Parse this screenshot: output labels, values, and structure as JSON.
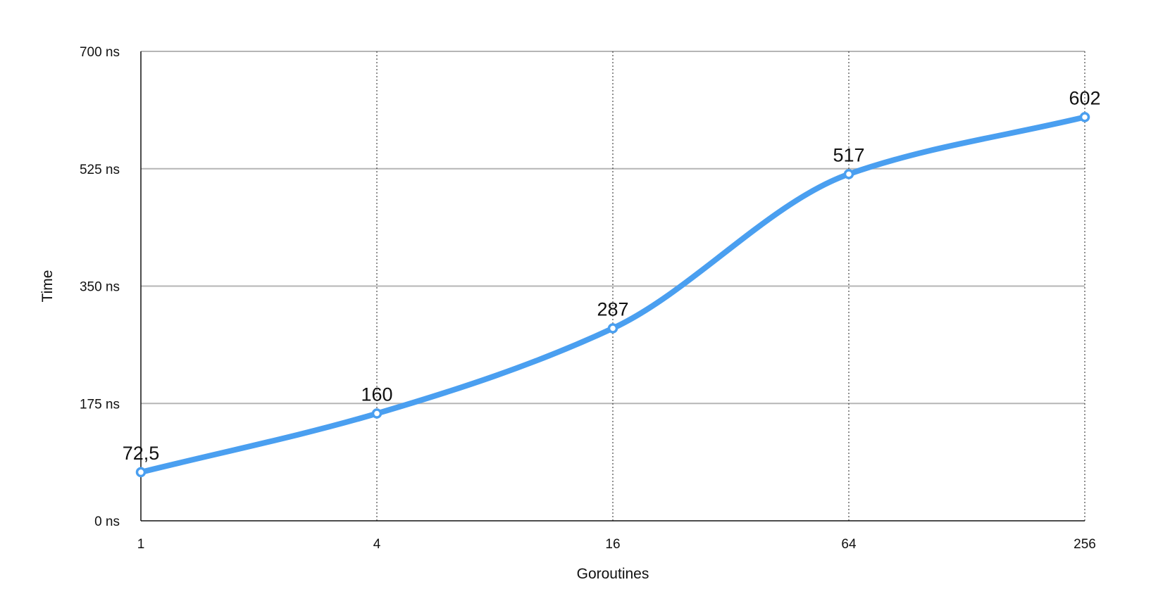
{
  "chart_data": {
    "type": "line",
    "title": "",
    "xlabel": "Goroutines",
    "ylabel": "Time",
    "x_scale": "log2",
    "categories": [
      "1",
      "4",
      "16",
      "64",
      "256"
    ],
    "x": [
      1,
      4,
      16,
      64,
      256
    ],
    "y_ticks": [
      "0 ns",
      "175 ns",
      "350 ns",
      "525 ns",
      "700 ns"
    ],
    "y_tick_values": [
      0,
      175,
      350,
      525,
      700
    ],
    "ylim": [
      0,
      700
    ],
    "series": [
      {
        "values": [
          72.5,
          160,
          287,
          517,
          602
        ],
        "labels": [
          "72,5",
          "160",
          "287",
          "517",
          "602"
        ],
        "color": "#4a9ff0"
      }
    ],
    "grid": {
      "horizontal": "solid",
      "vertical": "dotted",
      "color": "#b5b5b5"
    },
    "legend": "none"
  }
}
